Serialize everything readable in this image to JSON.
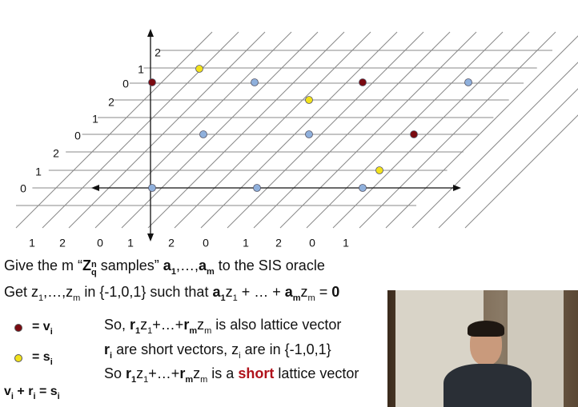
{
  "axis_labels": {
    "left": [
      "2",
      "1",
      "0",
      "2",
      "1",
      "0",
      "2",
      "1",
      "0"
    ],
    "bottom": [
      "1",
      "2",
      "0",
      "1",
      "2",
      "0",
      "1",
      "2",
      "0",
      "1"
    ]
  },
  "slide": {
    "line1": [
      "Give the m “",
      "Z",
      "n",
      "q",
      " samples” ",
      "a",
      "1",
      ",…,",
      "a",
      "m",
      " to the SIS oracle"
    ],
    "line2": [
      "Get z",
      "1",
      ",…,z",
      "m",
      " in {-1,0,1} such that ",
      "a",
      "1",
      "z",
      "1",
      " + … + ",
      "a",
      "m",
      "z",
      "m",
      " = ",
      "0"
    ],
    "legend": [
      [
        "= v",
        "i"
      ],
      [
        "= s",
        "i"
      ]
    ],
    "equation": [
      "v",
      "i",
      " + r",
      "i",
      " = s",
      "i"
    ],
    "notes": [
      [
        "So, ",
        "r",
        "1",
        "z",
        "1",
        "+…+",
        "r",
        "m",
        "z",
        "m",
        " is also lattice vector"
      ],
      [
        "r",
        "i",
        " are short vectors, z",
        "i",
        " are in {-1,0,1}"
      ],
      [
        "So ",
        "r",
        "1",
        "z",
        "1",
        "+…+",
        "r",
        "m",
        "z",
        "m",
        " is a ",
        "short",
        " lattice vector"
      ]
    ]
  }
}
